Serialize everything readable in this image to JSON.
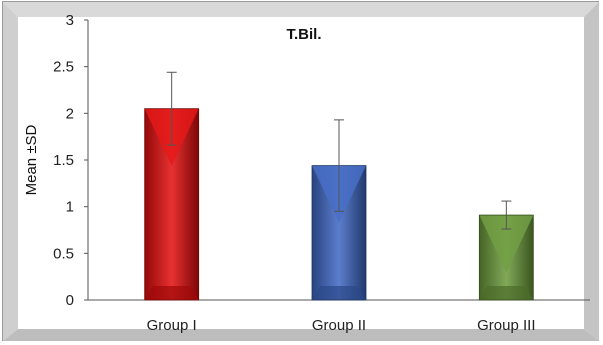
{
  "chart_data": {
    "type": "bar",
    "title": "T.Bil.",
    "ylabel": "Mean ±SD",
    "xlabel": "",
    "categories": [
      "Group I",
      "Group II",
      "Group III"
    ],
    "values": [
      2.05,
      1.44,
      0.91
    ],
    "errors": [
      0.39,
      0.49,
      0.15
    ],
    "ylim": [
      0,
      3
    ],
    "yticks": [
      "0",
      "0.5",
      "1",
      "1.5",
      "2",
      "2.5",
      "3"
    ],
    "colors": [
      "#e30d0d",
      "#3e67c4",
      "#6b9a3a"
    ],
    "grid": false,
    "legend": "none"
  }
}
